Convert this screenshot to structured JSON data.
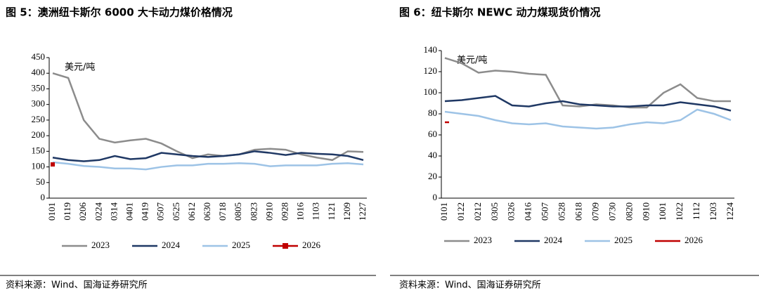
{
  "chart_data": [
    {
      "type": "line",
      "title": "图 5：澳洲纽卡斯尔 6000 大卡动力煤价格情况",
      "y_unit": "美元/吨",
      "source": "资料来源：Wind、国海证券研究所",
      "categories": [
        "0101",
        "0119",
        "0206",
        "0224",
        "0314",
        "0401",
        "0419",
        "0507",
        "0525",
        "0612",
        "0630",
        "0718",
        "0805",
        "0823",
        "0910",
        "0928",
        "1016",
        "1103",
        "1121",
        "1209",
        "1227"
      ],
      "ylim": [
        0,
        450
      ],
      "yticks": [
        0,
        50,
        100,
        150,
        200,
        250,
        300,
        350,
        400,
        450
      ],
      "series": [
        {
          "name": "2023",
          "color": "#8c8c8c",
          "values": [
            400,
            385,
            250,
            190,
            178,
            185,
            190,
            175,
            150,
            128,
            140,
            135,
            140,
            155,
            158,
            155,
            140,
            130,
            122,
            150,
            148
          ]
        },
        {
          "name": "2024",
          "color": "#1f3864",
          "values": [
            130,
            122,
            118,
            122,
            135,
            125,
            128,
            145,
            140,
            135,
            132,
            135,
            140,
            150,
            145,
            138,
            145,
            142,
            140,
            135,
            122
          ]
        },
        {
          "name": "2025",
          "color": "#9dc3e6",
          "values": [
            115,
            110,
            103,
            100,
            95,
            95,
            92,
            100,
            105,
            105,
            110,
            110,
            112,
            110,
            102,
            105,
            105,
            105,
            110,
            112,
            108
          ]
        },
        {
          "name": "2026",
          "color": "#c00000",
          "marker": "square",
          "values": [
            108,
            null,
            null,
            null,
            null,
            null,
            null,
            null,
            null,
            null,
            null,
            null,
            null,
            null,
            null,
            null,
            null,
            null,
            null,
            null,
            null
          ]
        }
      ]
    },
    {
      "type": "line",
      "title": "图 6：纽卡斯尔 NEWC 动力煤现货价情况",
      "y_unit": "美元/吨",
      "source": "资料来源：Wind、国海证券研究所",
      "categories": [
        "0101",
        "0122",
        "0212",
        "0305",
        "0326",
        "0416",
        "0507",
        "0528",
        "0618",
        "0709",
        "0730",
        "0820",
        "0910",
        "1001",
        "1022",
        "1112",
        "1203",
        "1224"
      ],
      "ylim": [
        0,
        140
      ],
      "yticks": [
        0,
        20,
        40,
        60,
        80,
        100,
        120,
        140
      ],
      "series": [
        {
          "name": "2023",
          "color": "#8c8c8c",
          "values": [
            133,
            128,
            119,
            121,
            120,
            118,
            117,
            88,
            87,
            89,
            88,
            86,
            86,
            100,
            108,
            95,
            92,
            92
          ]
        },
        {
          "name": "2024",
          "color": "#1f3864",
          "values": [
            92,
            93,
            95,
            97,
            88,
            87,
            90,
            92,
            89,
            88,
            87,
            87,
            88,
            88,
            91,
            89,
            87,
            83
          ]
        },
        {
          "name": "2025",
          "color": "#9dc3e6",
          "values": [
            82,
            80,
            78,
            74,
            71,
            70,
            71,
            68,
            67,
            66,
            67,
            70,
            72,
            71,
            74,
            84,
            80,
            74
          ]
        },
        {
          "name": "2026",
          "color": "#c00000",
          "values": [
            72,
            null,
            null,
            null,
            null,
            null,
            null,
            null,
            null,
            null,
            null,
            null,
            null,
            null,
            null,
            null,
            null,
            null
          ]
        }
      ]
    }
  ]
}
